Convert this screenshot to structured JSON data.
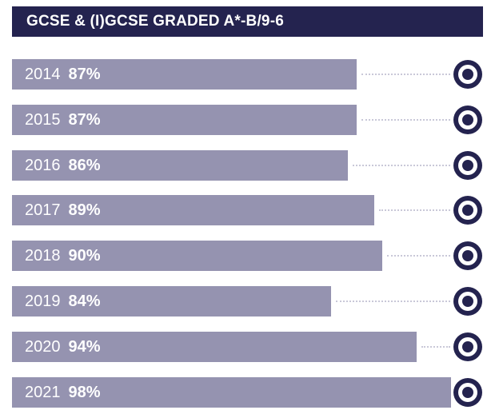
{
  "header": {
    "title": "GCSE & (I)GCSE GRADED A*-B/9-6"
  },
  "colors": {
    "title_bg": "#24234f",
    "bar": "#9593b0",
    "marker": "#24234f",
    "dots": "#c9c8d8"
  },
  "chart_data": {
    "type": "bar",
    "orientation": "horizontal",
    "title": "GCSE & (I)GCSE GRADED A*-B/9-6",
    "categories": [
      "2014",
      "2015",
      "2016",
      "2017",
      "2018",
      "2019",
      "2020",
      "2021"
    ],
    "values": [
      87,
      87,
      86,
      89,
      90,
      84,
      94,
      98
    ],
    "value_labels": [
      "87%",
      "87%",
      "86%",
      "89%",
      "90%",
      "84%",
      "94%",
      "98%"
    ],
    "unit": "%",
    "grid": false,
    "legend": "none"
  }
}
